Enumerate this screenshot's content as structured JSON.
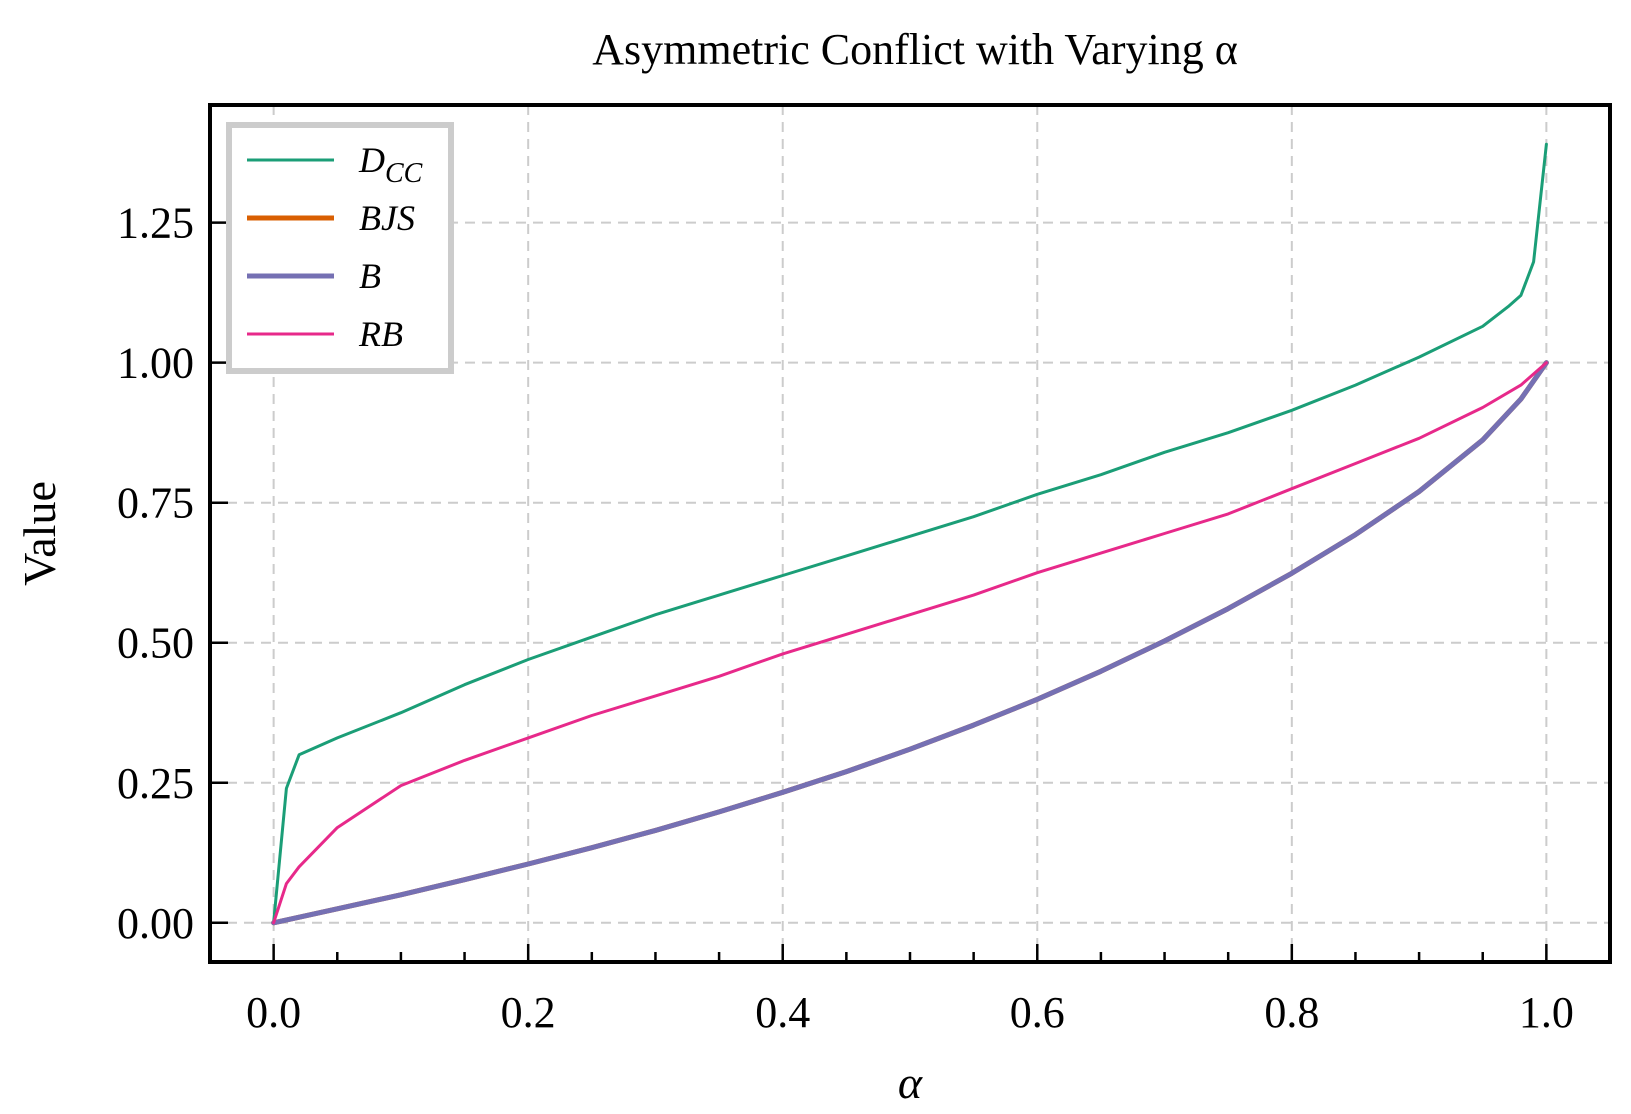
{
  "chart_data": {
    "type": "line",
    "title": "Asymmetric Conflict with Varying α",
    "xlabel": "α",
    "ylabel": "Value",
    "xlim": [
      -0.05,
      1.05
    ],
    "ylim": [
      -0.07,
      1.46
    ],
    "xticks": [
      0.0,
      0.2,
      0.4,
      0.6,
      0.8,
      1.0
    ],
    "xtick_labels": [
      "0.0",
      "0.2",
      "0.4",
      "0.6",
      "0.8",
      "1.0"
    ],
    "yticks": [
      0.0,
      0.25,
      0.5,
      0.75,
      1.0,
      1.25
    ],
    "ytick_labels": [
      "0.00",
      "0.25",
      "0.50",
      "0.75",
      "1.00",
      "1.25"
    ],
    "grid": true,
    "legend_position": "top-left",
    "series": [
      {
        "name": "D",
        "name_sub": "CC",
        "color": "#1b9e77",
        "x": [
          0,
          0.01,
          0.02,
          0.05,
          0.1,
          0.15,
          0.2,
          0.25,
          0.3,
          0.35,
          0.4,
          0.45,
          0.5,
          0.55,
          0.6,
          0.65,
          0.7,
          0.75,
          0.8,
          0.85,
          0.9,
          0.95,
          0.97,
          0.98,
          0.99,
          1.0
        ],
        "y": [
          0.0,
          0.24,
          0.3,
          0.33,
          0.375,
          0.425,
          0.47,
          0.51,
          0.55,
          0.585,
          0.62,
          0.655,
          0.69,
          0.725,
          0.765,
          0.8,
          0.84,
          0.875,
          0.915,
          0.96,
          1.01,
          1.065,
          1.1,
          1.12,
          1.18,
          1.39
        ]
      },
      {
        "name": "BJS",
        "color": "#d95f02",
        "x": [
          0,
          0.05,
          0.1,
          0.15,
          0.2,
          0.25,
          0.3,
          0.35,
          0.4,
          0.45,
          0.5,
          0.55,
          0.6,
          0.65,
          0.7,
          0.75,
          0.8,
          0.85,
          0.9,
          0.95,
          0.98,
          1.0
        ],
        "y": [
          0.0,
          0.025,
          0.05,
          0.077,
          0.105,
          0.134,
          0.165,
          0.198,
          0.233,
          0.27,
          0.31,
          0.353,
          0.399,
          0.449,
          0.503,
          0.561,
          0.624,
          0.693,
          0.77,
          0.862,
          0.935,
          1.0
        ]
      },
      {
        "name": "B",
        "color": "#7570b3",
        "x": [
          0,
          0.05,
          0.1,
          0.15,
          0.2,
          0.25,
          0.3,
          0.35,
          0.4,
          0.45,
          0.5,
          0.55,
          0.6,
          0.65,
          0.7,
          0.75,
          0.8,
          0.85,
          0.9,
          0.95,
          0.98,
          1.0
        ],
        "y": [
          0.0,
          0.025,
          0.05,
          0.077,
          0.105,
          0.134,
          0.165,
          0.198,
          0.233,
          0.27,
          0.31,
          0.353,
          0.399,
          0.449,
          0.503,
          0.561,
          0.624,
          0.693,
          0.77,
          0.862,
          0.935,
          1.0
        ]
      },
      {
        "name": "RB",
        "color": "#e7298a",
        "x": [
          0,
          0.01,
          0.02,
          0.05,
          0.1,
          0.15,
          0.2,
          0.25,
          0.3,
          0.35,
          0.4,
          0.45,
          0.5,
          0.55,
          0.6,
          0.65,
          0.7,
          0.75,
          0.8,
          0.85,
          0.9,
          0.95,
          0.98,
          1.0
        ],
        "y": [
          0.0,
          0.07,
          0.1,
          0.17,
          0.245,
          0.29,
          0.33,
          0.37,
          0.405,
          0.44,
          0.48,
          0.515,
          0.55,
          0.585,
          0.625,
          0.66,
          0.695,
          0.73,
          0.775,
          0.82,
          0.865,
          0.92,
          0.96,
          1.0
        ]
      }
    ]
  }
}
